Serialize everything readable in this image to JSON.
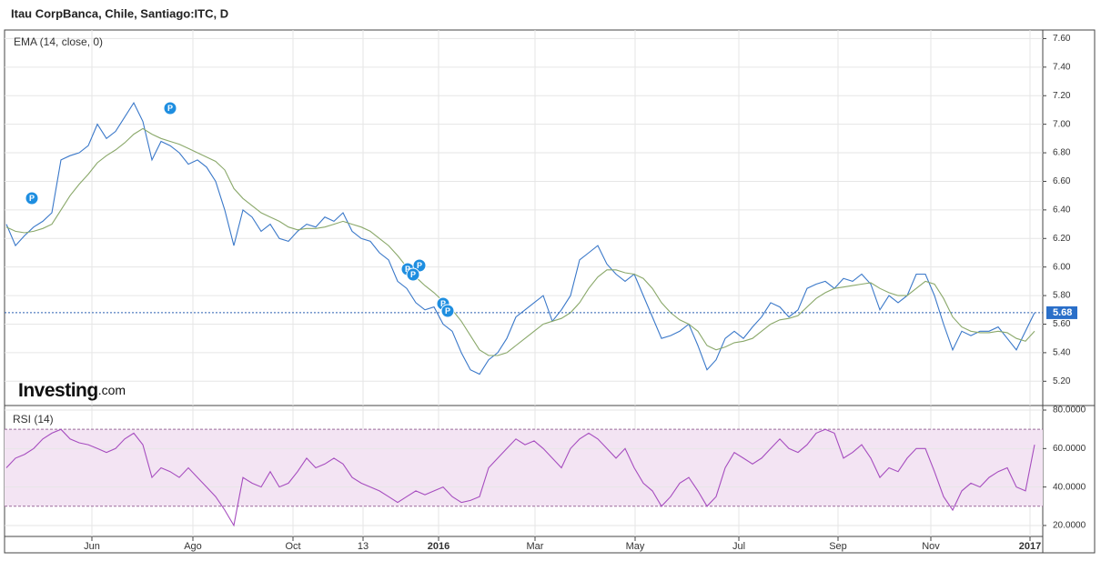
{
  "logo": "Investing",
  "logo_suffix": ".com",
  "chart_data": [
    {
      "type": "line",
      "title": "Itau CorpBanca, Chile, Santiago:ITC, D",
      "event_label": "P",
      "ylim": [
        5.03,
        7.66
      ],
      "yticks": [
        {
          "value": 5.2,
          "label": "5.20"
        },
        {
          "value": 5.4,
          "label": "5.40"
        },
        {
          "value": 5.6,
          "label": "5.60"
        },
        {
          "value": 5.8,
          "label": "5.80"
        },
        {
          "value": 6.0,
          "label": "6.00"
        },
        {
          "value": 6.2,
          "label": "6.20"
        },
        {
          "value": 6.4,
          "label": "6.40"
        },
        {
          "value": 6.6,
          "label": "6.60"
        },
        {
          "value": 6.8,
          "label": "6.80"
        },
        {
          "value": 7.0,
          "label": "7.00"
        },
        {
          "value": 7.2,
          "label": "7.20"
        },
        {
          "value": 7.4,
          "label": "7.40"
        },
        {
          "value": 7.6,
          "label": "7.60"
        }
      ],
      "last_value": 5.68,
      "last_value_label": "5.68",
      "grid": true,
      "series": [
        {
          "color": "#3a78c9",
          "values": [
            6.3,
            6.15,
            6.22,
            6.28,
            6.32,
            6.38,
            6.75,
            6.78,
            6.8,
            6.85,
            7.0,
            6.9,
            6.95,
            7.05,
            7.15,
            7.02,
            6.75,
            6.88,
            6.85,
            6.8,
            6.72,
            6.75,
            6.7,
            6.6,
            6.4,
            6.15,
            6.4,
            6.35,
            6.25,
            6.3,
            6.2,
            6.18,
            6.25,
            6.3,
            6.28,
            6.35,
            6.32,
            6.38,
            6.25,
            6.2,
            6.18,
            6.1,
            6.05,
            5.9,
            5.85,
            5.75,
            5.7,
            5.72,
            5.6,
            5.55,
            5.4,
            5.28,
            5.25,
            5.35,
            5.4,
            5.5,
            5.65,
            5.7,
            5.75,
            5.8,
            5.62,
            5.7,
            5.8,
            6.05,
            6.1,
            6.15,
            6.02,
            5.95,
            5.9,
            5.95,
            5.8,
            5.65,
            5.5,
            5.52,
            5.55,
            5.6,
            5.45,
            5.28,
            5.35,
            5.5,
            5.55,
            5.5,
            5.58,
            5.65,
            5.75,
            5.72,
            5.65,
            5.7,
            5.85,
            5.88,
            5.9,
            5.85,
            5.92,
            5.9,
            5.95,
            5.88,
            5.7,
            5.8,
            5.75,
            5.8,
            5.95,
            5.95,
            5.8,
            5.6,
            5.42,
            5.55,
            5.52,
            5.55,
            5.55,
            5.58,
            5.5,
            5.42,
            5.55,
            5.68
          ]
        },
        {
          "name": "EMA (14, close, 0)",
          "color": "#8aa86a",
          "values": [
            6.28,
            6.25,
            6.24,
            6.25,
            6.27,
            6.3,
            6.4,
            6.5,
            6.58,
            6.65,
            6.73,
            6.78,
            6.82,
            6.87,
            6.93,
            6.97,
            6.93,
            6.9,
            6.88,
            6.86,
            6.83,
            6.8,
            6.77,
            6.74,
            6.68,
            6.55,
            6.48,
            6.43,
            6.38,
            6.35,
            6.32,
            6.28,
            6.26,
            6.27,
            6.27,
            6.28,
            6.3,
            6.32,
            6.3,
            6.28,
            6.25,
            6.2,
            6.15,
            6.08,
            6.0,
            5.93,
            5.87,
            5.82,
            5.76,
            5.7,
            5.62,
            5.52,
            5.42,
            5.38,
            5.38,
            5.4,
            5.45,
            5.5,
            5.55,
            5.6,
            5.62,
            5.64,
            5.68,
            5.75,
            5.85,
            5.93,
            5.98,
            5.98,
            5.96,
            5.95,
            5.92,
            5.85,
            5.75,
            5.68,
            5.63,
            5.6,
            5.55,
            5.45,
            5.42,
            5.44,
            5.47,
            5.48,
            5.5,
            5.55,
            5.6,
            5.63,
            5.64,
            5.66,
            5.72,
            5.78,
            5.82,
            5.85,
            5.86,
            5.87,
            5.88,
            5.89,
            5.85,
            5.82,
            5.8,
            5.8,
            5.85,
            5.9,
            5.88,
            5.78,
            5.65,
            5.58,
            5.55,
            5.54,
            5.54,
            5.55,
            5.54,
            5.5,
            5.48,
            5.55
          ]
        }
      ]
    },
    {
      "type": "line",
      "title": "RSI (14)",
      "xlim": [
        0,
        113
      ],
      "xticks": [
        {
          "value": 9.4,
          "label": "Jun"
        },
        {
          "value": 20.5,
          "label": "Ago"
        },
        {
          "value": 31.5,
          "label": "Oct"
        },
        {
          "value": 39.2,
          "label": "13"
        },
        {
          "value": 47.5,
          "label": "2016"
        },
        {
          "value": 58.1,
          "label": "Mar"
        },
        {
          "value": 69.1,
          "label": "May"
        },
        {
          "value": 80.5,
          "label": "Jul"
        },
        {
          "value": 91.4,
          "label": "Sep"
        },
        {
          "value": 101.6,
          "label": "Nov"
        },
        {
          "value": 112.5,
          "label": "2017"
        }
      ],
      "ylim": [
        14.3,
        81.9
      ],
      "yticks": [
        {
          "value": 20,
          "label": "20.0000"
        },
        {
          "value": 40,
          "label": "40.0000"
        },
        {
          "value": 60,
          "label": "60.0000"
        },
        {
          "value": 80,
          "label": "80.0000"
        }
      ],
      "band": [
        30,
        70
      ],
      "band_color": "#f3e4f3",
      "grid": true,
      "series": [
        {
          "color": "#a64dbf",
          "values": [
            50,
            55,
            57,
            60,
            65,
            68,
            70,
            65,
            63,
            62,
            60,
            58,
            60,
            65,
            68,
            62,
            45,
            50,
            48,
            45,
            50,
            45,
            40,
            35,
            28,
            20,
            45,
            42,
            40,
            48,
            40,
            42,
            48,
            55,
            50,
            52,
            55,
            52,
            45,
            42,
            40,
            38,
            35,
            32,
            35,
            38,
            36,
            38,
            40,
            35,
            32,
            33,
            35,
            50,
            55,
            60,
            65,
            62,
            64,
            60,
            55,
            50,
            60,
            65,
            68,
            65,
            60,
            55,
            60,
            50,
            42,
            38,
            30,
            35,
            42,
            45,
            38,
            30,
            35,
            50,
            58,
            55,
            52,
            55,
            60,
            65,
            60,
            58,
            62,
            68,
            70,
            68,
            55,
            58,
            62,
            55,
            45,
            50,
            48,
            55,
            60,
            60,
            48,
            35,
            28,
            38,
            42,
            40,
            45,
            48,
            50,
            40,
            38,
            62
          ]
        }
      ]
    }
  ]
}
